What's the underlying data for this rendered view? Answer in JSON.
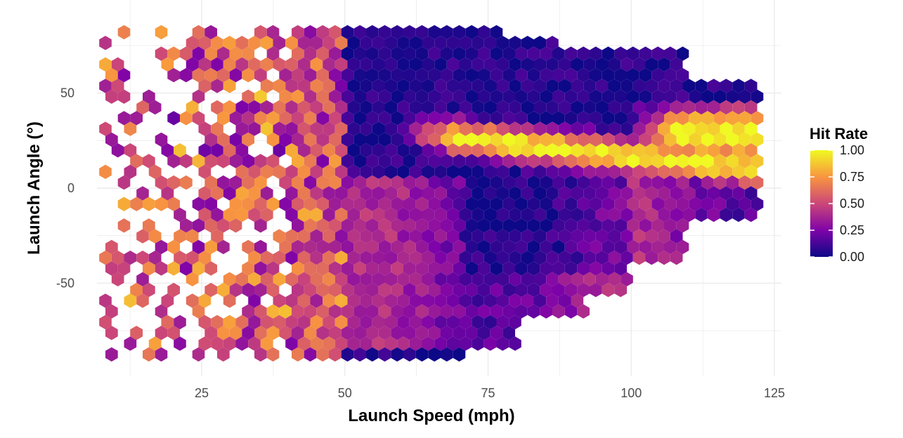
{
  "chart_data": {
    "type": "heatmap",
    "subtype": "hexbin",
    "title": "",
    "xlabel": "Launch Speed (mph)",
    "ylabel": "Launch Angle (°)",
    "xlim": [
      5,
      127
    ],
    "ylim": [
      -97,
      97
    ],
    "x_ticks": [
      25,
      50,
      75,
      100,
      125
    ],
    "y_ticks": [
      -50,
      0,
      50
    ],
    "grid": true,
    "colormap": "plasma",
    "colors": [
      "#0d0887",
      "#7e03a8",
      "#cc4778",
      "#f89540",
      "#f0f921"
    ],
    "legend": {
      "title": "Hit Rate",
      "placement": "right",
      "range": [
        0,
        1
      ],
      "labels": [
        "1.00",
        "0.75",
        "0.50",
        "0.25",
        "0.00"
      ]
    }
  }
}
